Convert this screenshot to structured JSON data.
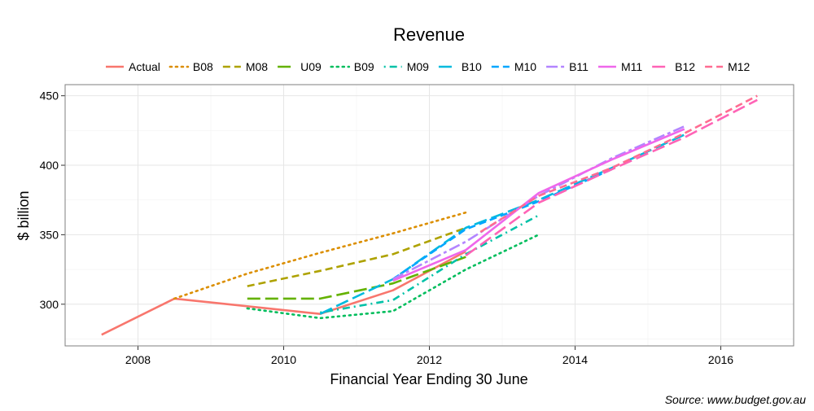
{
  "chart_data": {
    "type": "line",
    "title": "Revenue",
    "xlabel": "Financial Year Ending 30 June",
    "ylabel": "$ billion",
    "source": "Source: www.budget.gov.au",
    "xlim": [
      2007.0,
      2017.0
    ],
    "ylim": [
      270,
      458
    ],
    "x_ticks": [
      2008,
      2010,
      2012,
      2014,
      2016
    ],
    "y_ticks": [
      300,
      350,
      400,
      450
    ],
    "grid": true,
    "legend_position": "top",
    "series": [
      {
        "name": "Actual",
        "color": "#F8766D",
        "dash": "solid",
        "x": [
          2007.5,
          2008.5,
          2010.5,
          2011.5,
          2012.5
        ],
        "y": [
          278,
          304,
          293,
          310,
          338
        ]
      },
      {
        "name": "B08",
        "color": "#DB8E00",
        "dash": "dotted",
        "x": [
          2008.5,
          2009.5,
          2010.5,
          2011.5,
          2012.5
        ],
        "y": [
          304,
          322,
          337,
          351,
          366
        ]
      },
      {
        "name": "M08",
        "color": "#AEA200",
        "dash": "dashed",
        "x": [
          2009.5,
          2010.5,
          2011.5,
          2012.5
        ],
        "y": [
          313,
          324,
          336,
          355
        ]
      },
      {
        "name": "U09",
        "color": "#64B200",
        "dash": "longdash",
        "x": [
          2009.5,
          2010.5,
          2011.5,
          2012.5
        ],
        "y": [
          304,
          304,
          315,
          334
        ]
      },
      {
        "name": "B09",
        "color": "#00BD5C",
        "dash": "dotted",
        "x": [
          2009.5,
          2010.5,
          2011.5,
          2012.5,
          2013.5
        ],
        "y": [
          297,
          290,
          295,
          325,
          350
        ]
      },
      {
        "name": "M09",
        "color": "#00C1A7",
        "dash": "dotdash",
        "x": [
          2010.5,
          2011.5,
          2012.5,
          2013.5
        ],
        "y": [
          294,
          303,
          336,
          364
        ]
      },
      {
        "name": "B10",
        "color": "#00BADE",
        "dash": "longdash",
        "x": [
          2010.5,
          2011.5,
          2012.5,
          2013.5,
          2014.5,
          2015.5
        ],
        "y": [
          293,
          318,
          355,
          375,
          398,
          422
        ]
      },
      {
        "name": "M10",
        "color": "#00A6FF",
        "dash": "dashed",
        "x": [
          2011.5,
          2012.5,
          2013.5,
          2014.5
        ],
        "y": [
          318,
          354,
          374,
          397
        ]
      },
      {
        "name": "B11",
        "color": "#B385FF",
        "dash": "twodash",
        "x": [
          2011.5,
          2012.5,
          2013.5,
          2014.5,
          2015.5
        ],
        "y": [
          318,
          345,
          378,
          405,
          428
        ]
      },
      {
        "name": "M11",
        "color": "#EF67EB",
        "dash": "solid",
        "x": [
          2011.5,
          2012.5,
          2013.5,
          2014.5,
          2015.5
        ],
        "y": [
          317,
          339,
          380,
          404,
          426
        ]
      },
      {
        "name": "B12",
        "color": "#FF63B6",
        "dash": "longdash",
        "x": [
          2012.5,
          2013.5,
          2014.5,
          2015.5,
          2016.5
        ],
        "y": [
          335,
          373,
          397,
          420,
          447
        ]
      },
      {
        "name": "M12",
        "color": "#FF6C91",
        "dash": "dashed",
        "x": [
          2012.7,
          2013.5,
          2014.5,
          2015.5,
          2016.5
        ],
        "y": [
          352,
          378,
          398,
          423,
          450
        ]
      }
    ]
  }
}
